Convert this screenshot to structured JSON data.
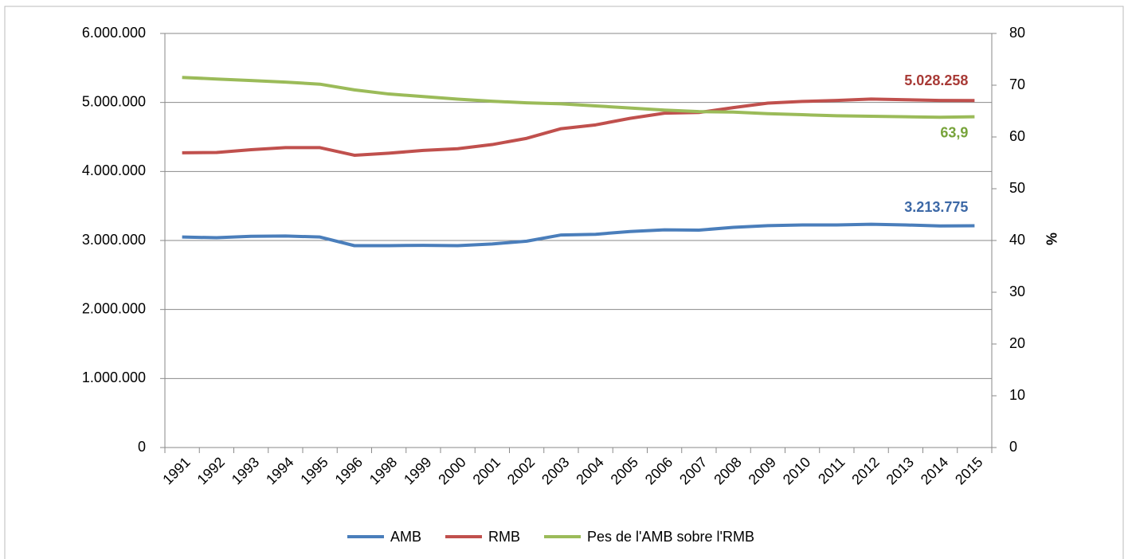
{
  "chart_data": {
    "type": "line",
    "categories": [
      "1991",
      "1992",
      "1993",
      "1994",
      "1995",
      "1996",
      "1998",
      "1999",
      "2000",
      "2001",
      "2002",
      "2003",
      "2004",
      "2005",
      "2006",
      "2007",
      "2008",
      "2009",
      "2010",
      "2011",
      "2012",
      "2013",
      "2014",
      "2015"
    ],
    "series": [
      {
        "name": "AMB",
        "color": "#4a7ebb",
        "label_color": "#3c68a6",
        "values": [
          3050000,
          3040000,
          3060000,
          3065000,
          3050000,
          2925000,
          2925000,
          2930000,
          2925000,
          2950000,
          2990000,
          3080000,
          3090000,
          3130000,
          3155000,
          3150000,
          3190000,
          3215000,
          3225000,
          3225000,
          3235000,
          3225000,
          3210000,
          3213775
        ],
        "value_labels": [
          null,
          null,
          null,
          null,
          null,
          null,
          null,
          null,
          null,
          null,
          null,
          null,
          null,
          null,
          null,
          null,
          null,
          null,
          null,
          null,
          null,
          null,
          null,
          "3.213.775"
        ]
      },
      {
        "name": "RMB",
        "color": "#c0504d",
        "label_color": "#a83a36",
        "values": [
          4270000,
          4275000,
          4315000,
          4345000,
          4345000,
          4235000,
          4265000,
          4305000,
          4330000,
          4390000,
          4480000,
          4620000,
          4675000,
          4770000,
          4845000,
          4855000,
          4925000,
          4990000,
          5015000,
          5030000,
          5050000,
          5040000,
          5030000,
          5028258
        ],
        "value_labels": [
          null,
          null,
          null,
          null,
          null,
          null,
          null,
          null,
          null,
          null,
          null,
          null,
          null,
          null,
          null,
          null,
          null,
          null,
          null,
          null,
          null,
          null,
          null,
          "5.028.258"
        ]
      },
      {
        "name": "Pes de l'AMB sobre l'RMB",
        "color": "#9bbb59",
        "label_color": "#77a33a",
        "axis": "y2",
        "values": [
          71.5,
          71.2,
          70.9,
          70.6,
          70.2,
          69.1,
          68.3,
          67.8,
          67.3,
          66.9,
          66.6,
          66.4,
          66.0,
          65.6,
          65.2,
          64.9,
          64.8,
          64.5,
          64.3,
          64.1,
          64.0,
          63.9,
          63.8,
          63.9
        ],
        "value_labels": [
          null,
          null,
          null,
          null,
          null,
          null,
          null,
          null,
          null,
          null,
          null,
          null,
          null,
          null,
          null,
          null,
          null,
          null,
          null,
          null,
          null,
          null,
          null,
          "63,9"
        ]
      }
    ],
    "ylim": [
      0,
      6000000
    ],
    "yticks": [
      0,
      {
        "value": 1000000,
        "label": "1.000.000"
      },
      {
        "value": 2000000,
        "label": "2.000.000"
      },
      {
        "value": 3000000,
        "label": "3.000.000"
      },
      {
        "value": 4000000,
        "label": "4.000.000"
      },
      {
        "value": 5000000,
        "label": "5.000.000"
      },
      {
        "value": 6000000,
        "label": "6.000.000"
      }
    ],
    "y2lim": [
      0,
      80
    ],
    "y2ticks": [
      0,
      10,
      20,
      30,
      40,
      50,
      60,
      70,
      80
    ],
    "y2label": "%",
    "grid": true,
    "legend": "bottom"
  }
}
